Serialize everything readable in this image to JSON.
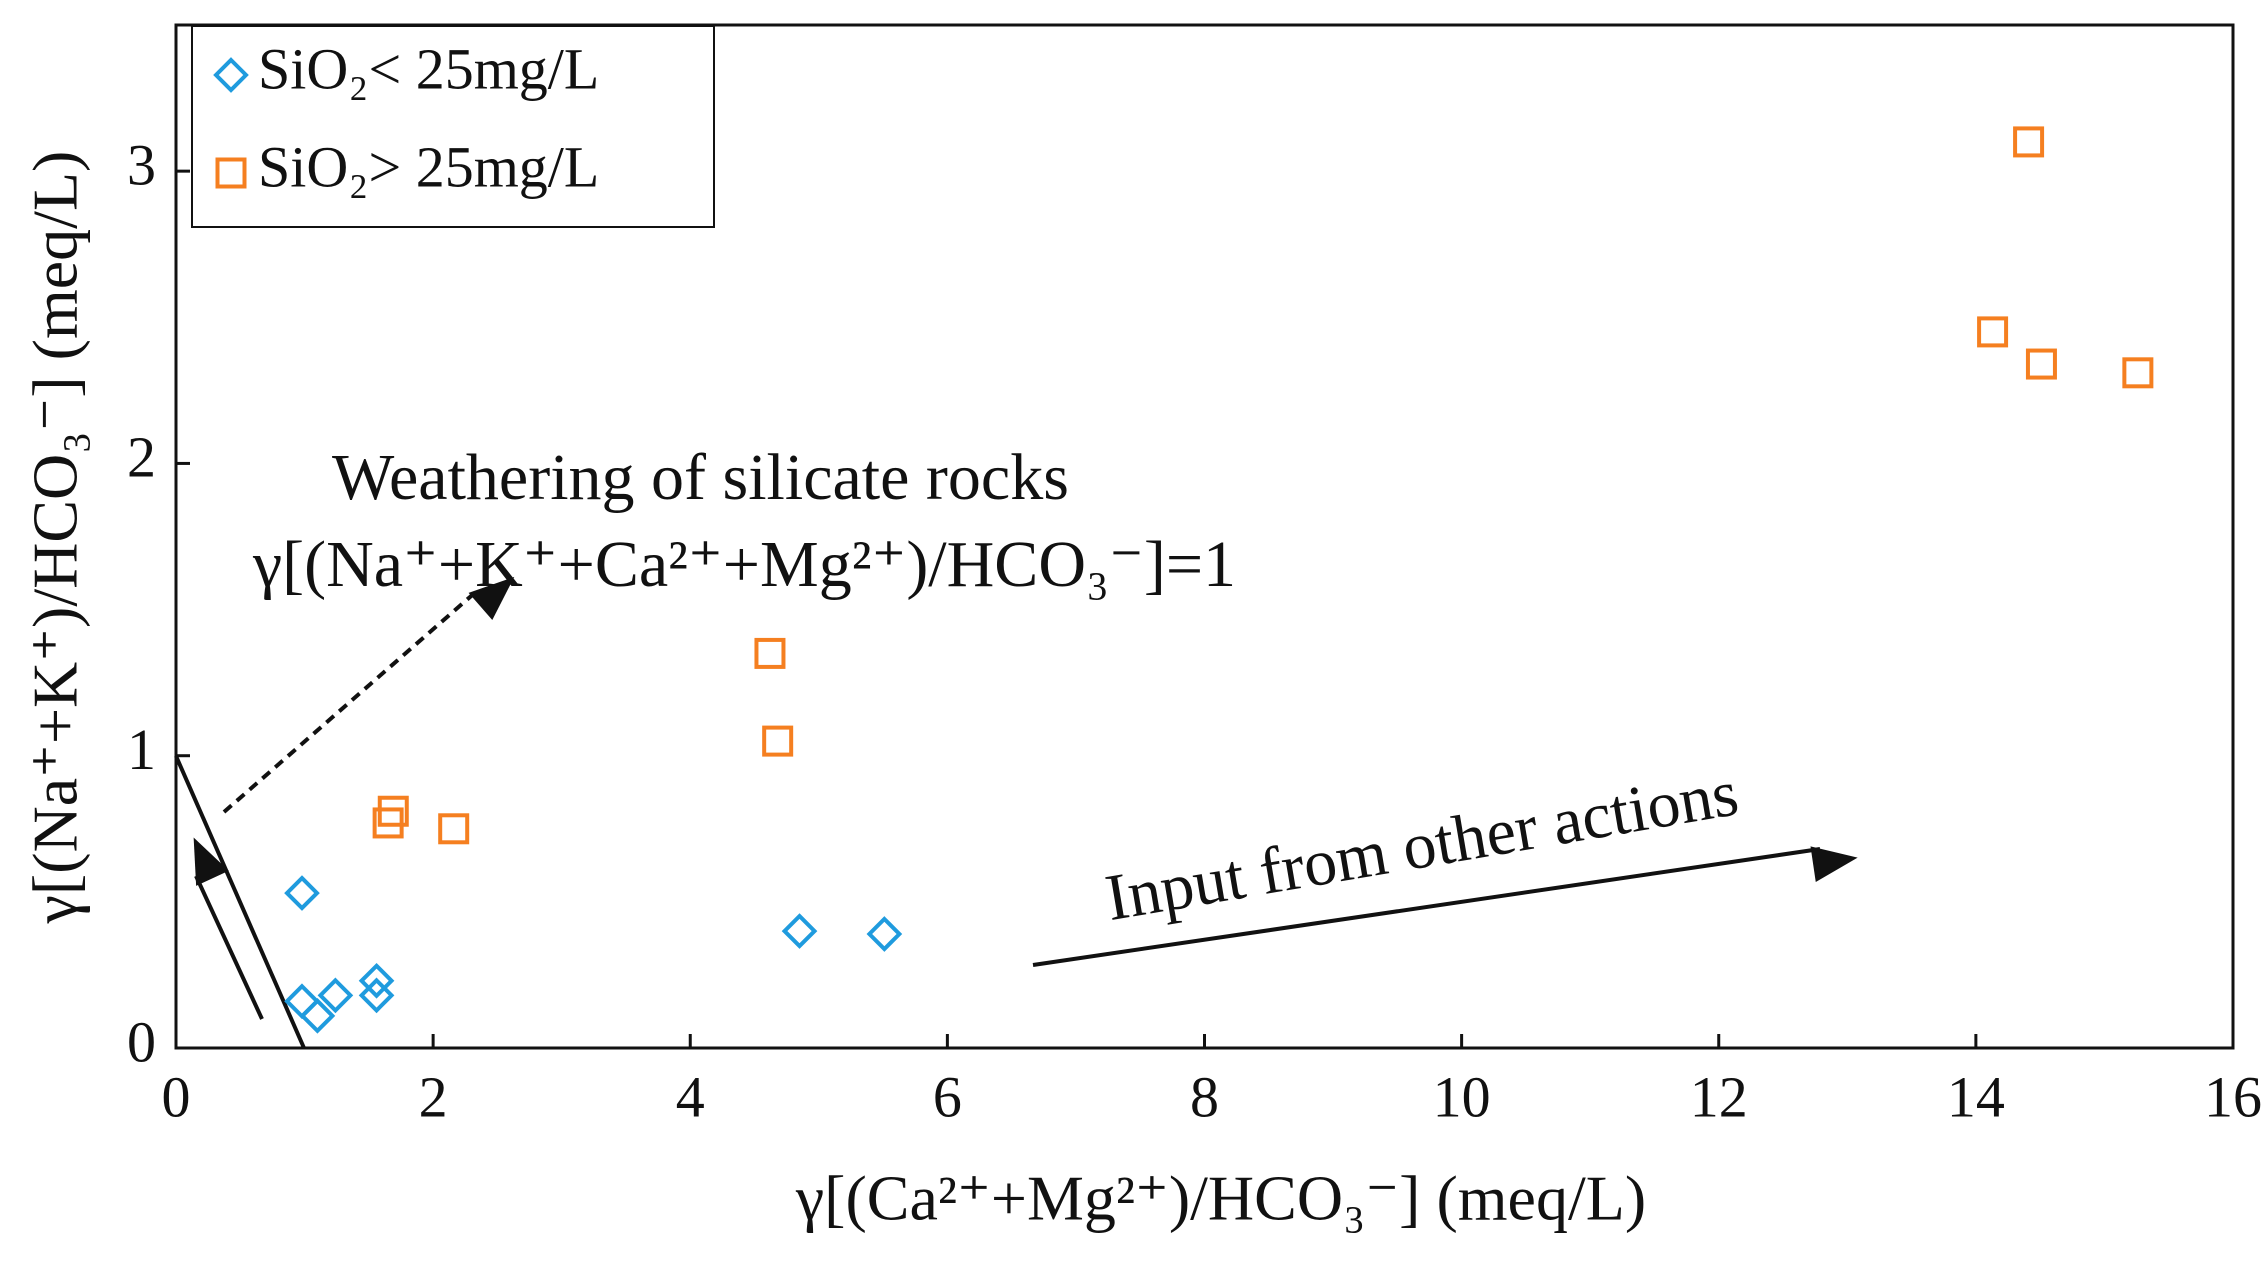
{
  "chart_data": {
    "type": "scatter",
    "x_label": "γ[(Ca²⁺+Mg²⁺)/HCO₃⁻]  (meq/L)",
    "y_label": "γ[(Na⁺+K⁺)/HCO₃⁻]  (meq/L)",
    "annotations": [
      "Weathering of silicate rocks",
      "γ[(Na⁺+K⁺+Ca²⁺+Mg²⁺)/HCO₃⁻]=1",
      "Input from other actions"
    ],
    "xlim": [
      0,
      16
    ],
    "xticks": [
      0,
      2,
      4,
      6,
      8,
      10,
      12,
      14,
      16
    ],
    "ylim": [
      0,
      3.5
    ],
    "yticks": [
      0,
      1,
      2,
      3
    ],
    "legend_position": "upper left",
    "series": [
      {
        "name": "SiO₂< 25mg/L",
        "color": "#1f9bde",
        "marker": "diamond",
        "x": [
          0.98,
          0.98,
          1.1,
          1.24,
          1.56,
          1.56,
          4.85,
          5.51
        ],
        "values": [
          0.53,
          0.16,
          0.11,
          0.18,
          0.23,
          0.18,
          0.4,
          0.39
        ]
      },
      {
        "name": "SiO₂> 25mg/L",
        "color": "#f57f20",
        "marker": "square",
        "x": [
          14.41,
          14.13,
          14.51,
          15.26,
          4.62,
          4.68,
          1.69,
          1.65,
          2.16
        ],
        "values": [
          3.1,
          2.45,
          2.34,
          2.31,
          1.35,
          1.05,
          0.81,
          0.77,
          0.75
        ]
      }
    ]
  }
}
